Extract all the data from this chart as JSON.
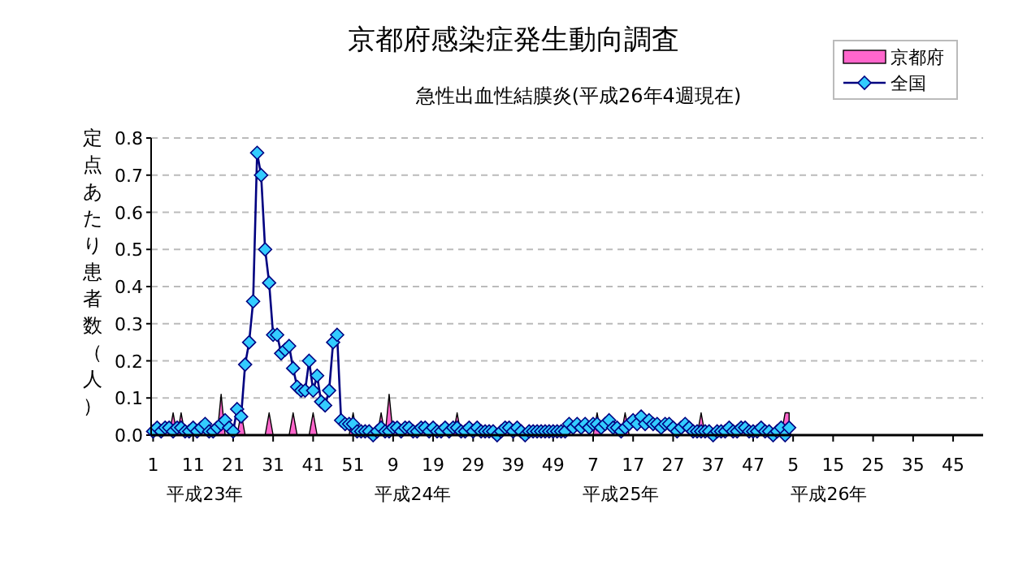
{
  "chart_data": {
    "type": "line",
    "title": "京都府感染症発生動向調査",
    "subtitle": "急性出血性結膜炎(平成26年4週現在)",
    "ylabel": "定点あたり患者数（人）",
    "categories": [
      "1",
      null,
      null,
      null,
      null,
      null,
      null,
      null,
      null,
      null,
      "11",
      null,
      null,
      null,
      null,
      null,
      null,
      null,
      null,
      null,
      "21",
      null,
      null,
      null,
      null,
      null,
      null,
      null,
      null,
      null,
      "31",
      null,
      null,
      null,
      null,
      null,
      null,
      null,
      null,
      null,
      "41",
      null,
      null,
      null,
      null,
      null,
      null,
      null,
      null,
      null,
      "51",
      null,
      null,
      null,
      null,
      null,
      null,
      null,
      null,
      null,
      "9",
      null,
      null,
      null,
      null,
      null,
      null,
      null,
      null,
      null,
      "19",
      null,
      null,
      null,
      null,
      null,
      null,
      null,
      null,
      null,
      "29",
      null,
      null,
      null,
      null,
      null,
      null,
      null,
      null,
      null,
      "39",
      null,
      null,
      null,
      null,
      null,
      null,
      null,
      null,
      null,
      "49",
      null,
      null,
      null,
      null,
      null,
      null,
      null,
      null,
      null,
      "7",
      null,
      null,
      null,
      null,
      null,
      null,
      null,
      null,
      null,
      "17",
      null,
      null,
      null,
      null,
      null,
      null,
      null,
      null,
      null,
      "27",
      null,
      null,
      null,
      null,
      null,
      null,
      null,
      null,
      null,
      "37",
      null,
      null,
      null,
      null,
      null,
      null,
      null,
      null,
      null,
      "47",
      null,
      null,
      null,
      null,
      null,
      null,
      null,
      null,
      null,
      "5",
      null,
      null,
      null,
      null,
      null,
      null,
      null,
      null,
      null,
      "15",
      null,
      null,
      null,
      null,
      null,
      null,
      null,
      null,
      null,
      "25",
      null,
      null,
      null,
      null,
      null,
      null,
      null,
      null,
      null,
      "35",
      null,
      null,
      null,
      null,
      null,
      null,
      null,
      null,
      null,
      "45",
      null,
      null,
      null,
      null,
      null,
      null,
      null
    ],
    "series": [
      {
        "name": "京都府",
        "type": "area",
        "color": "#ff66cc",
        "values": [
          0,
          0,
          0,
          0,
          0,
          0.06,
          0,
          0.06,
          0,
          0,
          0,
          0,
          0,
          0,
          0,
          0,
          0,
          0.11,
          0,
          0,
          0,
          0,
          0.06,
          0,
          0,
          0,
          0,
          0,
          0,
          0.06,
          0,
          0,
          0,
          0,
          0,
          0.06,
          0,
          0,
          0,
          0,
          0.06,
          0,
          0,
          0,
          0,
          0,
          0,
          0,
          0,
          0,
          0.06,
          0,
          0,
          0,
          0,
          0,
          0,
          0.06,
          0,
          0.11,
          0,
          0,
          0,
          0,
          0,
          0,
          0,
          0,
          0,
          0,
          0,
          0,
          0,
          0,
          0,
          0,
          0.06,
          0,
          0,
          0,
          0,
          0,
          0,
          0,
          0,
          0,
          0,
          0,
          0,
          0,
          0,
          0,
          0,
          0,
          0,
          0,
          0,
          0,
          0,
          0,
          0,
          0,
          0,
          0,
          0,
          0,
          0,
          0,
          0,
          0,
          0,
          0.06,
          0,
          0,
          0,
          0,
          0,
          0,
          0.06,
          0,
          0,
          0,
          0,
          0,
          0,
          0,
          0,
          0,
          0,
          0,
          0,
          0,
          0,
          0,
          0,
          0,
          0,
          0.06,
          0,
          0,
          0,
          0,
          0,
          0,
          0,
          0,
          0,
          0,
          0,
          0,
          0,
          0,
          0,
          0,
          0,
          0,
          0,
          0,
          0.06,
          0.06,
          null,
          null,
          null,
          null,
          null,
          null,
          null,
          null,
          null,
          null,
          null,
          null,
          null,
          null,
          null,
          null,
          null,
          null,
          null,
          null,
          null,
          null,
          null,
          null,
          null,
          null,
          null,
          null,
          null,
          null,
          null,
          null,
          null,
          null,
          null,
          null,
          null,
          null,
          null,
          null,
          null,
          null,
          null,
          null,
          null,
          null,
          null,
          null
        ]
      },
      {
        "name": "全国",
        "type": "line",
        "color": "#000080",
        "marker": "diamond",
        "values": [
          0.01,
          0.02,
          0.01,
          0.02,
          0.02,
          0.01,
          0.02,
          0.02,
          0.01,
          0.01,
          0.02,
          0.01,
          0.02,
          0.03,
          0.01,
          0.01,
          0.02,
          0.03,
          0.04,
          0.02,
          0.01,
          0.07,
          0.05,
          0.19,
          0.25,
          0.36,
          0.76,
          0.7,
          0.5,
          0.41,
          0.27,
          0.27,
          0.22,
          0.23,
          0.24,
          0.18,
          0.13,
          0.12,
          0.12,
          0.2,
          0.12,
          0.16,
          0.09,
          0.08,
          0.12,
          0.25,
          0.27,
          0.04,
          0.03,
          0.03,
          0.03,
          0.01,
          0.01,
          0.01,
          0.01,
          0.0,
          0.01,
          0.02,
          0.01,
          0.01,
          0.02,
          0.02,
          0.01,
          0.02,
          0.02,
          0.01,
          0.01,
          0.02,
          0.02,
          0.01,
          0.02,
          0.01,
          0.01,
          0.02,
          0.01,
          0.02,
          0.02,
          0.01,
          0.01,
          0.02,
          0.01,
          0.02,
          0.01,
          0.01,
          0.01,
          0.01,
          0.0,
          0.01,
          0.02,
          0.02,
          0.01,
          0.02,
          0.01,
          0.0,
          0.01,
          0.01,
          0.01,
          0.01,
          0.01,
          0.01,
          0.01,
          0.01,
          0.01,
          0.01,
          0.03,
          0.02,
          0.03,
          0.02,
          0.03,
          0.02,
          0.03,
          0.03,
          0.02,
          0.03,
          0.04,
          0.02,
          0.02,
          0.01,
          0.02,
          0.03,
          0.04,
          0.03,
          0.05,
          0.03,
          0.04,
          0.03,
          0.03,
          0.02,
          0.03,
          0.03,
          0.02,
          0.01,
          0.02,
          0.03,
          0.02,
          0.01,
          0.01,
          0.01,
          0.01,
          0.01,
          0.0,
          0.01,
          0.01,
          0.01,
          0.02,
          0.01,
          0.01,
          0.02,
          0.02,
          0.01,
          0.01,
          0.01,
          0.02,
          0.01,
          0.01,
          0.0,
          0.01,
          0.02,
          0.0,
          0.02,
          null,
          null,
          null,
          null,
          null,
          null,
          null,
          null,
          null,
          null,
          null,
          null,
          null,
          null,
          null,
          null,
          null,
          null,
          null,
          null,
          null,
          null,
          null,
          null,
          null,
          null,
          null,
          null,
          null,
          null,
          null,
          null,
          null,
          null,
          null,
          null,
          null,
          null,
          null,
          null,
          null,
          null,
          null,
          null,
          null,
          null,
          null,
          null
        ]
      }
    ],
    "ylim": [
      0,
      0.8
    ],
    "yticks": [
      {
        "value": 0,
        "label": "0.0"
      },
      0.1,
      0.2,
      0.3,
      0.4,
      0.5,
      0.6,
      0.7,
      0.8
    ],
    "grid": "y",
    "legend": "top right",
    "line_style": "solid",
    "annotations": [
      "平成23年",
      "平成24年",
      "平成25年",
      "平成26年"
    ]
  }
}
